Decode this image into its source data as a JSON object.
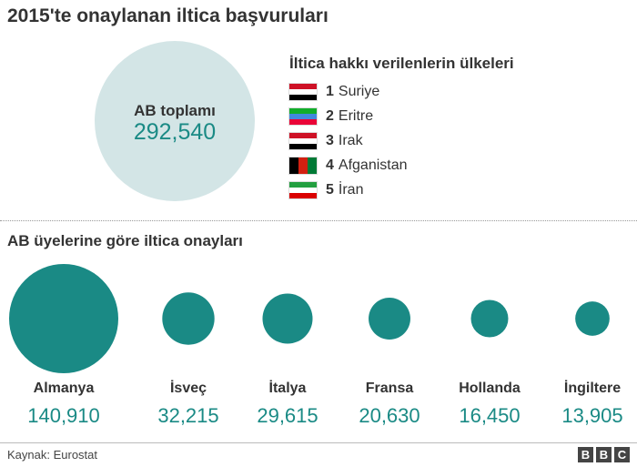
{
  "header": {
    "title": "2015'te onaylanan iltica başvuruları"
  },
  "total": {
    "label": "AB toplamı",
    "value": "292,540"
  },
  "top_countries": {
    "title": "İltica hakkı verilenlerin ülkeleri",
    "items": [
      {
        "rank": "1",
        "name": "Suriye",
        "flag_icon": "syria-flag-icon",
        "colors": [
          "#ce1126",
          "#ffffff",
          "#000000"
        ]
      },
      {
        "rank": "2",
        "name": "Eritre",
        "flag_icon": "eritrea-flag-icon",
        "colors": [
          "#12ad2b",
          "#4189dd",
          "#ea0437"
        ]
      },
      {
        "rank": "3",
        "name": "Irak",
        "flag_icon": "iraq-flag-icon",
        "colors": [
          "#ce1126",
          "#ffffff",
          "#000000"
        ]
      },
      {
        "rank": "4",
        "name": "Afganistan",
        "flag_icon": "afghanistan-flag-icon",
        "colors": [
          "#000000",
          "#d32011",
          "#007a36"
        ]
      },
      {
        "rank": "5",
        "name": "İran",
        "flag_icon": "iran-flag-icon",
        "colors": [
          "#239f40",
          "#ffffff",
          "#da0000"
        ]
      }
    ]
  },
  "members": {
    "title": "AB üyelerine göre iltica onayları"
  },
  "chart_data": {
    "type": "bubble",
    "categories": [
      "Almanya",
      "İsveç",
      "İtalya",
      "Fransa",
      "Hollanda",
      "İngiltere"
    ],
    "values": [
      140910,
      32215,
      29615,
      20630,
      16450,
      13905
    ],
    "value_labels": [
      "140,910",
      "32,215",
      "29,615",
      "20,630",
      "16,450",
      "13,905"
    ],
    "color": "#1a8a85"
  },
  "footer": {
    "source": "Kaynak: Eurostat",
    "logo": [
      "B",
      "B",
      "C"
    ]
  }
}
